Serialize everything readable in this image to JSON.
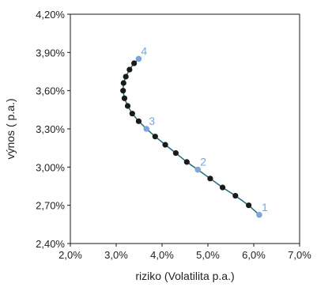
{
  "chart_data": {
    "type": "scatter",
    "xlabel": "riziko (Volatilita p.a.)",
    "ylabel": "výnos ( p.a.)",
    "xlim": [
      0.02,
      0.07
    ],
    "ylim": [
      0.024,
      0.042
    ],
    "x_ticks": [
      0.02,
      0.03,
      0.04,
      0.05,
      0.06,
      0.07
    ],
    "y_ticks": [
      0.024,
      0.027,
      0.03,
      0.033,
      0.036,
      0.039,
      0.042
    ],
    "x_tick_labels": [
      "2,0%",
      "3,0%",
      "4,0%",
      "5,0%",
      "6,0%",
      "7,0%"
    ],
    "y_tick_labels": [
      "2,40%",
      "2,70%",
      "3,00%",
      "3,30%",
      "3,60%",
      "3,90%",
      "4,20%"
    ],
    "grid": false,
    "legend": "none",
    "colors": {
      "line": "#1f6b7a",
      "point": "#1a1a1a",
      "highlight": "#7aa6d8"
    },
    "series": [
      {
        "points": [
          [
            0.0612,
            0.02625
          ],
          [
            0.0589,
            0.027
          ],
          [
            0.056,
            0.02775
          ],
          [
            0.0532,
            0.0284
          ],
          [
            0.0505,
            0.0291
          ],
          [
            0.0478,
            0.0298
          ],
          [
            0.0454,
            0.0304
          ],
          [
            0.043,
            0.0311
          ],
          [
            0.0407,
            0.03175
          ],
          [
            0.0385,
            0.0324
          ],
          [
            0.0366,
            0.033
          ],
          [
            0.0349,
            0.0336
          ],
          [
            0.0335,
            0.0342
          ],
          [
            0.0325,
            0.0348
          ],
          [
            0.0318,
            0.0354
          ],
          [
            0.0315,
            0.036
          ],
          [
            0.0316,
            0.0366
          ],
          [
            0.0321,
            0.0371
          ],
          [
            0.0329,
            0.03765
          ],
          [
            0.0339,
            0.03815
          ],
          [
            0.0349,
            0.0385
          ]
        ]
      }
    ],
    "highlighted": [
      {
        "label": "1",
        "x": 0.0612,
        "y": 0.02625
      },
      {
        "label": "2",
        "x": 0.0478,
        "y": 0.0298
      },
      {
        "label": "3",
        "x": 0.0366,
        "y": 0.033
      },
      {
        "label": "4",
        "x": 0.0349,
        "y": 0.0385
      }
    ]
  }
}
